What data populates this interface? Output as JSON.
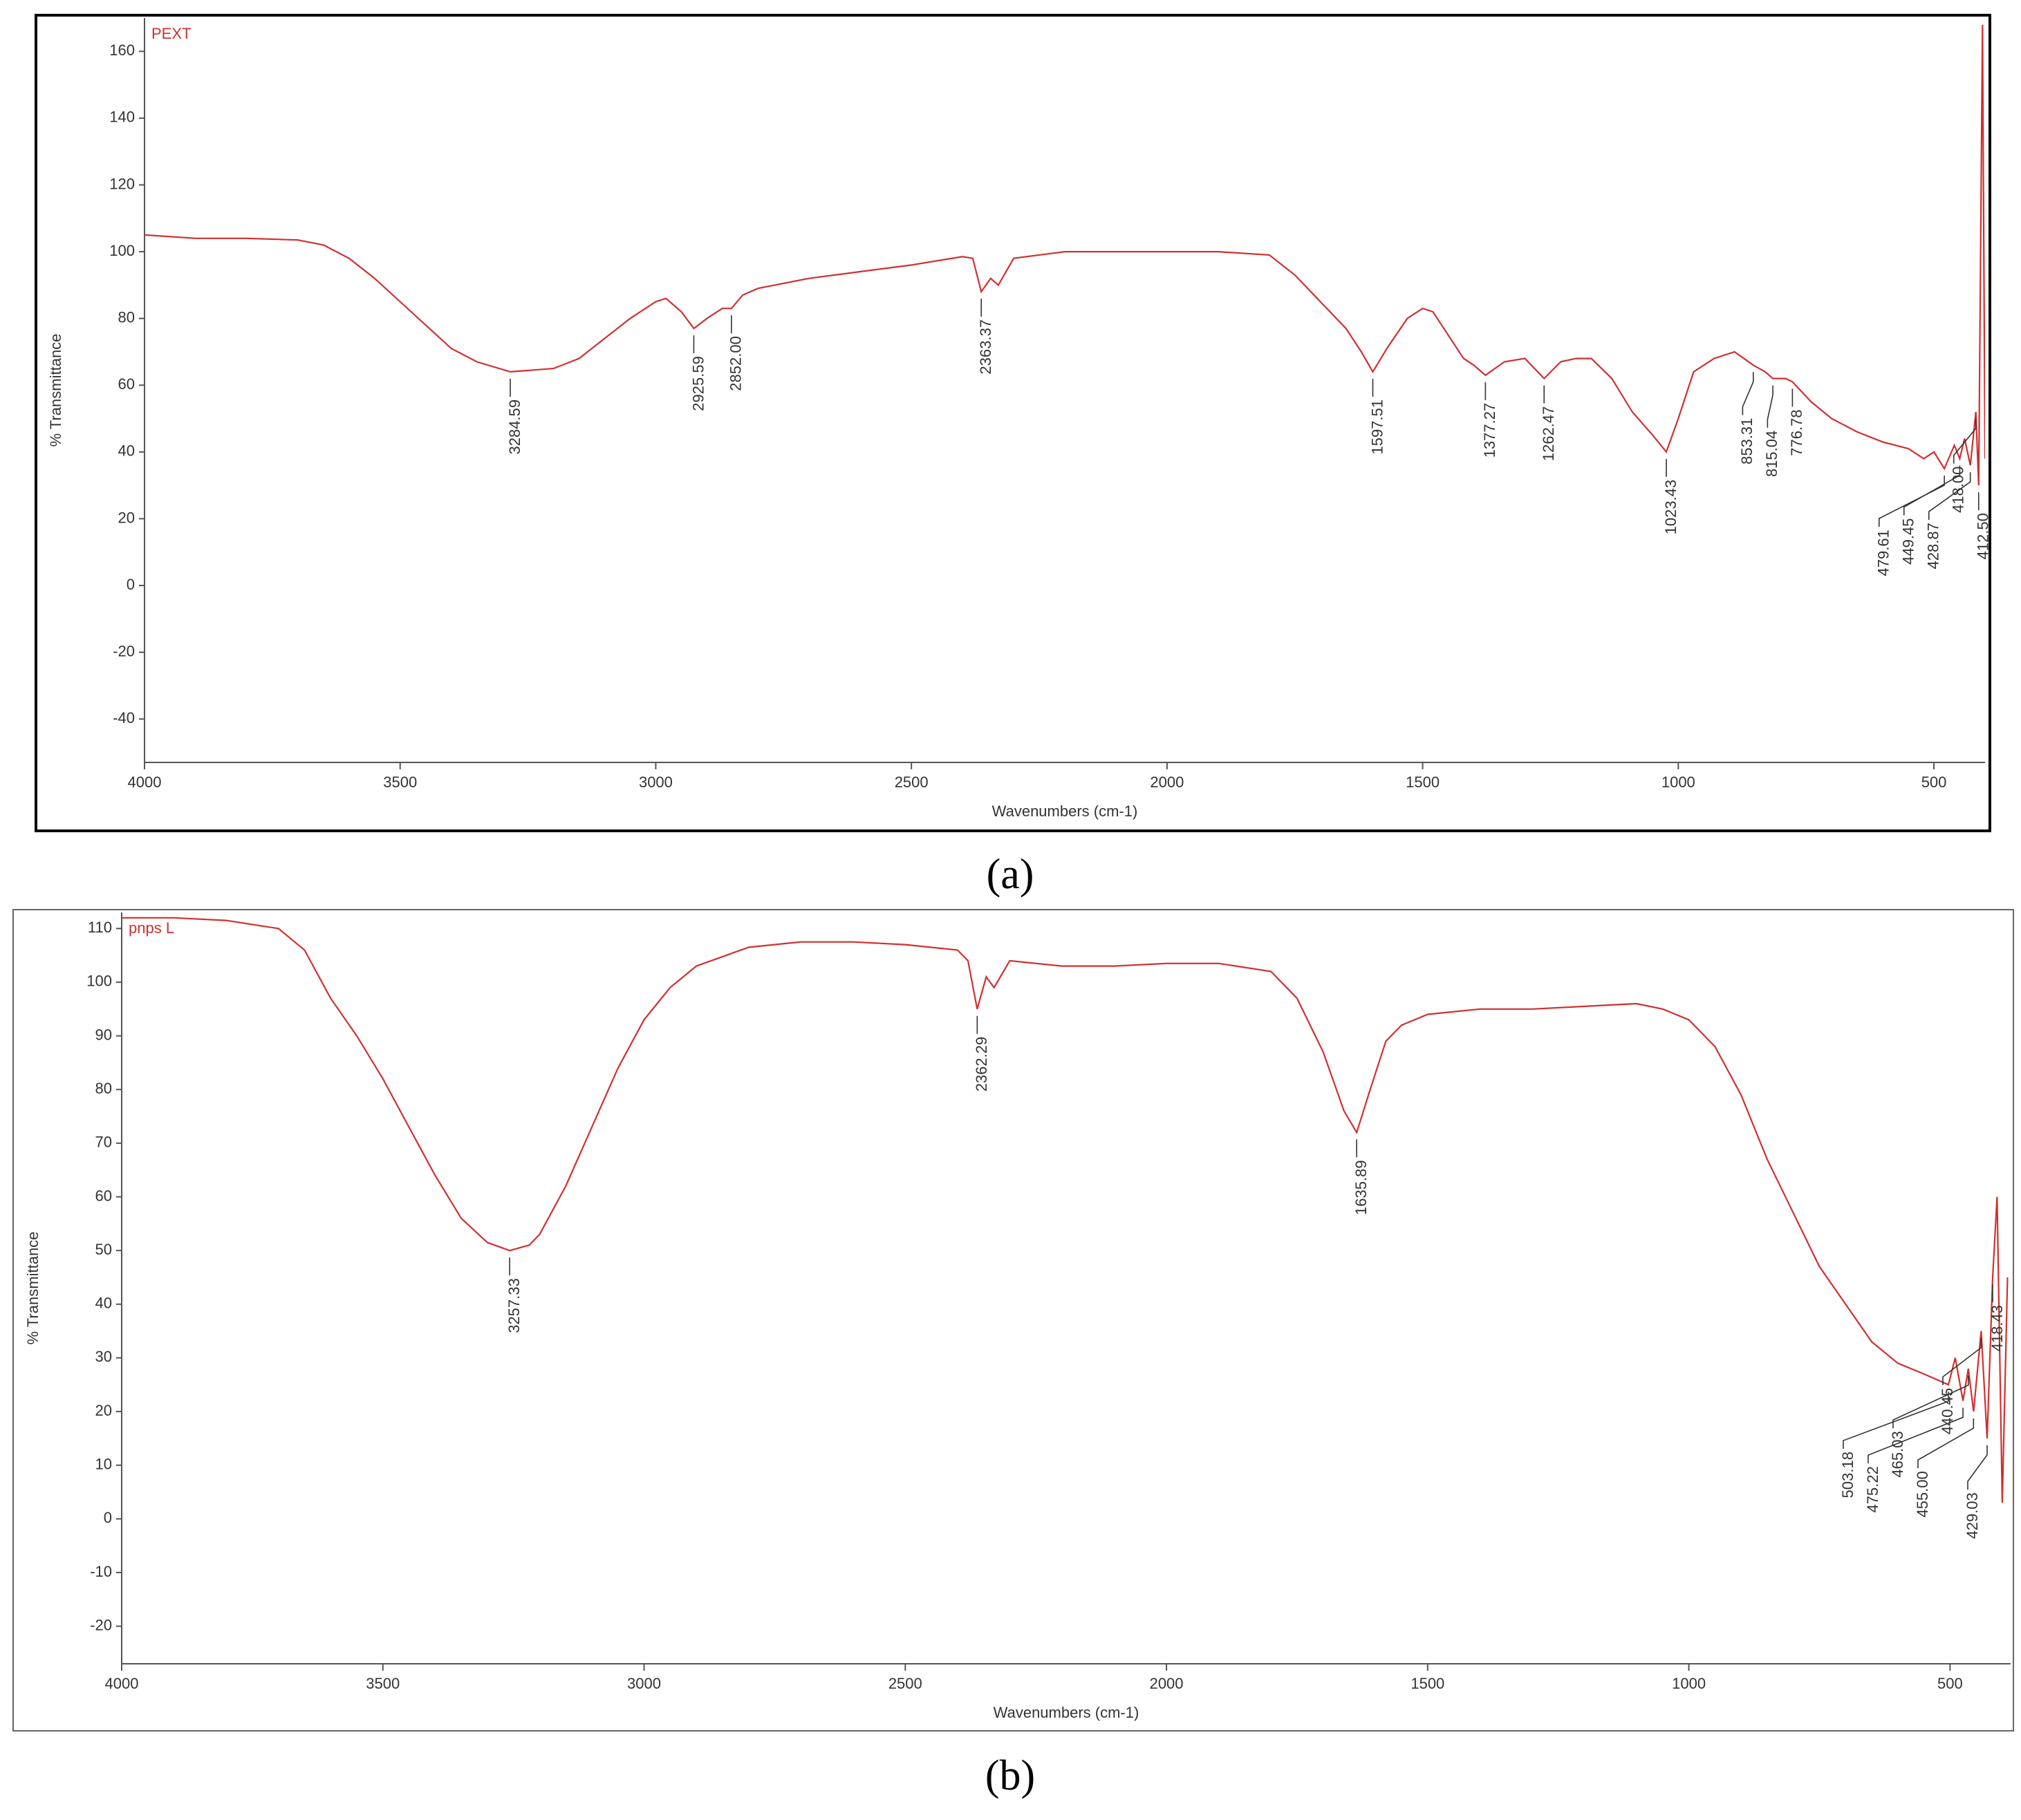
{
  "chart_data": [
    {
      "type": "line",
      "caption": "(a)",
      "xlabel": "Wavenumbers (cm-1)",
      "ylabel": "% Transmittance",
      "xlim": [
        4000,
        400
      ],
      "ylim": [
        -53,
        170
      ],
      "xticks": [
        4000,
        3500,
        3000,
        2500,
        2000,
        1500,
        1000,
        500
      ],
      "yticks": [
        -40,
        -20,
        0,
        20,
        40,
        60,
        80,
        100,
        120,
        140,
        160
      ],
      "x": [
        4000,
        3900,
        3800,
        3700,
        3650,
        3600,
        3550,
        3500,
        3450,
        3400,
        3350,
        3284.59,
        3200,
        3150,
        3100,
        3050,
        3000,
        2980,
        2950,
        2925.59,
        2900,
        2870,
        2852,
        2830,
        2800,
        2700,
        2600,
        2500,
        2400,
        2380,
        2363.37,
        2345,
        2330,
        2300,
        2200,
        2100,
        2000,
        1900,
        1800,
        1750,
        1700,
        1650,
        1620,
        1597.51,
        1570,
        1530,
        1500,
        1480,
        1450,
        1420,
        1400,
        1377.27,
        1340,
        1300,
        1262.47,
        1230,
        1200,
        1170,
        1130,
        1090,
        1050,
        1023.43,
        1000,
        970,
        930,
        890,
        853.31,
        830,
        815.04,
        790,
        776.78,
        740,
        700,
        650,
        600,
        550,
        520,
        500,
        479.61,
        460,
        449.45,
        440,
        428.87,
        418,
        412.5,
        405,
        400
      ],
      "series": [
        {
          "name": "PEXT",
          "color": "#d0302f",
          "values": [
            105,
            104,
            104,
            103.5,
            102,
            98,
            92,
            85,
            78,
            71,
            67,
            64,
            65,
            68,
            74,
            80,
            85,
            86,
            82,
            77,
            80,
            83,
            83,
            87,
            89,
            92,
            94,
            96,
            98.5,
            98,
            88,
            92,
            90,
            98,
            100,
            100,
            100,
            100,
            99,
            93,
            85,
            77,
            70,
            64,
            71,
            80,
            83,
            82,
            75,
            68,
            66,
            63,
            67,
            68,
            62,
            67,
            68,
            68,
            62,
            52,
            45,
            40,
            50,
            64,
            68,
            70,
            66,
            64,
            62,
            62,
            61,
            55,
            50,
            46,
            43,
            41,
            38,
            40,
            35,
            42,
            38,
            44,
            36,
            52,
            30,
            168,
            38
          ]
        }
      ],
      "peaks": [
        {
          "x": 3284.59,
          "y": 64,
          "label": "3284.59"
        },
        {
          "x": 2925.59,
          "y": 77,
          "label": "2925.59"
        },
        {
          "x": 2852,
          "y": 83,
          "label": "2852.00"
        },
        {
          "x": 2363.37,
          "y": 88,
          "label": "2363.37"
        },
        {
          "x": 1597.51,
          "y": 64,
          "label": "1597.51"
        },
        {
          "x": 1377.27,
          "y": 63,
          "label": "1377.27"
        },
        {
          "x": 1262.47,
          "y": 62,
          "label": "1262.47"
        },
        {
          "x": 1023.43,
          "y": 40,
          "label": "1023.43"
        },
        {
          "x": 853.31,
          "y": 66,
          "label": "853.31"
        },
        {
          "x": 815.04,
          "y": 62,
          "label": "815.04"
        },
        {
          "x": 776.78,
          "y": 61,
          "label": "776.78"
        },
        {
          "x": 479.61,
          "y": 35,
          "label": "479.61"
        },
        {
          "x": 449.45,
          "y": 38,
          "label": "449.45"
        },
        {
          "x": 428.87,
          "y": 36,
          "label": "428.87"
        },
        {
          "x": 418,
          "y": 52,
          "label": "418.00"
        },
        {
          "x": 412.5,
          "y": 30,
          "label": "412.50"
        }
      ]
    },
    {
      "type": "line",
      "caption": "(b)",
      "xlabel": "Wavenumbers (cm-1)",
      "ylabel": "% Transmittance",
      "xlim": [
        4000,
        384
      ],
      "ylim": [
        -27,
        113
      ],
      "xticks": [
        4000,
        3500,
        3000,
        2500,
        2000,
        1500,
        1000,
        500
      ],
      "yticks": [
        -20,
        -10,
        0,
        10,
        20,
        30,
        40,
        50,
        60,
        70,
        80,
        90,
        100,
        110
      ],
      "x": [
        4000,
        3900,
        3800,
        3700,
        3650,
        3600,
        3550,
        3500,
        3450,
        3400,
        3350,
        3300,
        3257.33,
        3220,
        3200,
        3150,
        3100,
        3050,
        3000,
        2950,
        2900,
        2800,
        2700,
        2600,
        2500,
        2400,
        2380,
        2362.29,
        2345,
        2330,
        2300,
        2200,
        2100,
        2000,
        1900,
        1800,
        1750,
        1700,
        1660,
        1635.89,
        1610,
        1580,
        1550,
        1500,
        1400,
        1300,
        1200,
        1100,
        1050,
        1000,
        950,
        900,
        850,
        800,
        750,
        700,
        650,
        600,
        550,
        503.18,
        490,
        475.22,
        465.03,
        455,
        440.45,
        429.03,
        418.43,
        410,
        400,
        390
      ],
      "series": [
        {
          "name": "pnps L",
          "color": "#d0302f",
          "values": [
            112,
            112,
            111.5,
            110,
            106,
            97,
            90,
            82,
            73,
            64,
            56,
            51.5,
            50,
            51,
            53,
            62,
            73,
            84,
            93,
            99,
            103,
            106.5,
            107.5,
            107.5,
            107,
            106,
            104,
            95,
            101,
            99,
            104,
            103,
            103,
            103.5,
            103.5,
            102,
            97,
            87,
            76,
            72,
            80,
            89,
            92,
            94,
            95,
            95,
            95.5,
            96,
            95,
            93,
            88,
            79,
            67,
            57,
            47,
            40,
            33,
            29,
            27,
            25,
            30,
            22,
            28,
            20,
            35,
            15,
            45,
            60,
            3,
            45
          ]
        }
      ],
      "peaks": [
        {
          "x": 3257.33,
          "y": 50,
          "label": "3257.33"
        },
        {
          "x": 2362.29,
          "y": 95,
          "label": "2362.29"
        },
        {
          "x": 1635.89,
          "y": 72,
          "label": "1635.89"
        },
        {
          "x": 503.18,
          "y": 25,
          "label": "503.18"
        },
        {
          "x": 475.22,
          "y": 22,
          "label": "475.22"
        },
        {
          "x": 465.03,
          "y": 28,
          "label": "465.03"
        },
        {
          "x": 455,
          "y": 20,
          "label": "455.00"
        },
        {
          "x": 440.45,
          "y": 35,
          "label": "440.45"
        },
        {
          "x": 429.03,
          "y": 15,
          "label": "429.03"
        },
        {
          "x": 418.43,
          "y": 45,
          "label": "418.43"
        }
      ]
    }
  ]
}
